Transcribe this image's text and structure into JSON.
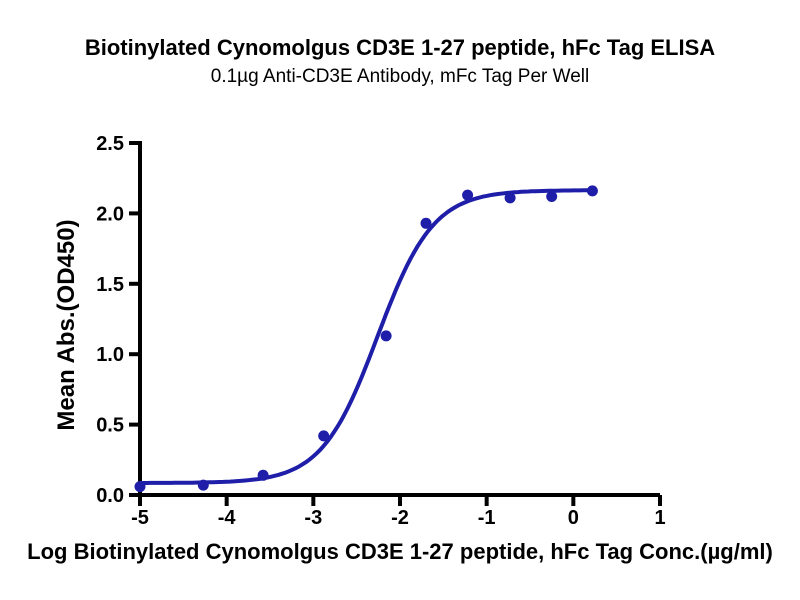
{
  "chart_data": {
    "type": "scatter",
    "title": "Biotinylated Cynomolgus CD3E 1-27 peptide, hFc Tag ELISA",
    "subtitle": "0.1µg Anti-CD3E Antibody, mFc Tag Per Well",
    "xlabel": "Log Biotinylated Cynomolgus CD3E 1-27 peptide, hFc Tag Conc.(µg/ml)",
    "ylabel": "Mean Abs.(OD450)",
    "xlim": [
      -5,
      1
    ],
    "ylim": [
      0,
      2.5
    ],
    "x_ticks": [
      -5,
      -4,
      -3,
      -2,
      -1,
      0,
      1
    ],
    "y_ticks": [
      0,
      0.5,
      1,
      1.5,
      2,
      2.5
    ],
    "grid": false,
    "legend": false,
    "points": {
      "x": [
        -5.0,
        -4.27,
        -3.58,
        -2.88,
        -2.16,
        -1.7,
        -1.22,
        -0.73,
        -0.25,
        0.22
      ],
      "y": [
        0.06,
        0.07,
        0.14,
        0.42,
        1.13,
        1.93,
        2.13,
        2.11,
        2.12,
        2.16
      ]
    },
    "fit_curve": {
      "model": "4PL sigmoid",
      "bottom": 0.085,
      "top": 2.165,
      "log_ec50": -2.26,
      "hill": 1.35,
      "x_start": -5,
      "x_end": 0.22
    },
    "colors": {
      "curve": "#1e1ea8",
      "points": "#1e1ea8",
      "axis": "#000000",
      "background": "#ffffff"
    }
  }
}
